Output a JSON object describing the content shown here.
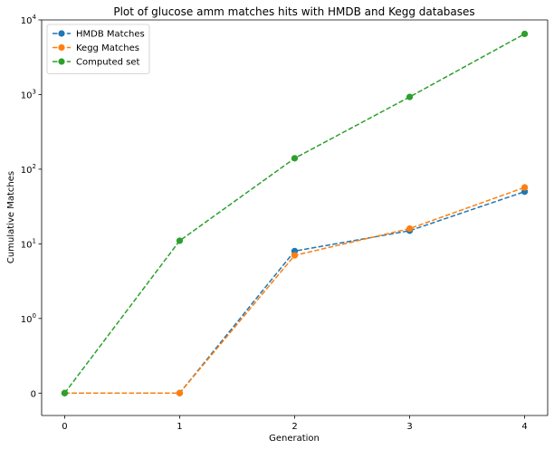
{
  "chart_data": {
    "type": "line",
    "title": "Plot of glucose amm matches hits with HMDB and Kegg databases",
    "xlabel": "Generation",
    "ylabel": "Cumulative Matches",
    "x": [
      0,
      1,
      2,
      3,
      4
    ],
    "x_ticks": [
      "0",
      "1",
      "2",
      "3",
      "4"
    ],
    "xlim": [
      -0.2,
      4.2
    ],
    "y_scale": "symlog",
    "ylim": [
      -0.3,
      10000
    ],
    "y_ticks": [
      {
        "value": 0,
        "label": "0"
      },
      {
        "value": 1,
        "label": "10^0"
      },
      {
        "value": 10,
        "label": "10^1"
      },
      {
        "value": 100,
        "label": "10^2"
      },
      {
        "value": 1000,
        "label": "10^3"
      },
      {
        "value": 10000,
        "label": "10^4"
      }
    ],
    "grid": false,
    "legend_position": "top-left",
    "series": [
      {
        "name": "HMDB Matches",
        "values": [
          0,
          0,
          8,
          15,
          50
        ],
        "color": "#1f77b4",
        "line_style": "dashed",
        "marker": "circle"
      },
      {
        "name": "Kegg Matches",
        "values": [
          0,
          0,
          7,
          16,
          57
        ],
        "color": "#ff7f0e",
        "line_style": "dashed",
        "marker": "circle"
      },
      {
        "name": "Computed set",
        "values": [
          0,
          11,
          140,
          930,
          6500
        ],
        "color": "#2ca02c",
        "line_style": "dashed",
        "marker": "circle"
      }
    ]
  }
}
